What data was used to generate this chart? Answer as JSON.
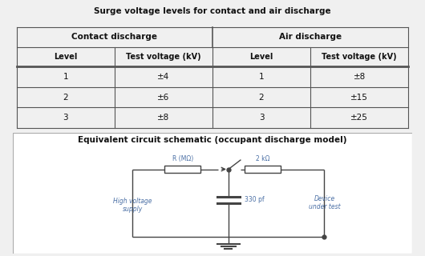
{
  "table_title": "Surge voltage levels for contact and air discharge",
  "circuit_title": "Equivalent circuit schematic (occupant discharge model)",
  "col_headers": [
    "Contact discharge",
    "Air discharge"
  ],
  "sub_headers": [
    "Level",
    "Test voltage (kV)",
    "Level",
    "Test voltage (kV)"
  ],
  "rows": [
    [
      "1",
      "±4",
      "1",
      "±8"
    ],
    [
      "2",
      "±6",
      "2",
      "±15"
    ],
    [
      "3",
      "±8",
      "3",
      "±25"
    ]
  ],
  "r_label": "R (MΩ)",
  "r2_label": "2 kΩ",
  "cap_label": "330 pf",
  "hv_label": "High voltage\nsupply",
  "dut_label": "Device\nunder test",
  "text_color": "#4a6fa5",
  "line_color": "#333333",
  "bg_color": "#f0f0f0",
  "wire_color": "#444444",
  "table_line_color": "#555555"
}
